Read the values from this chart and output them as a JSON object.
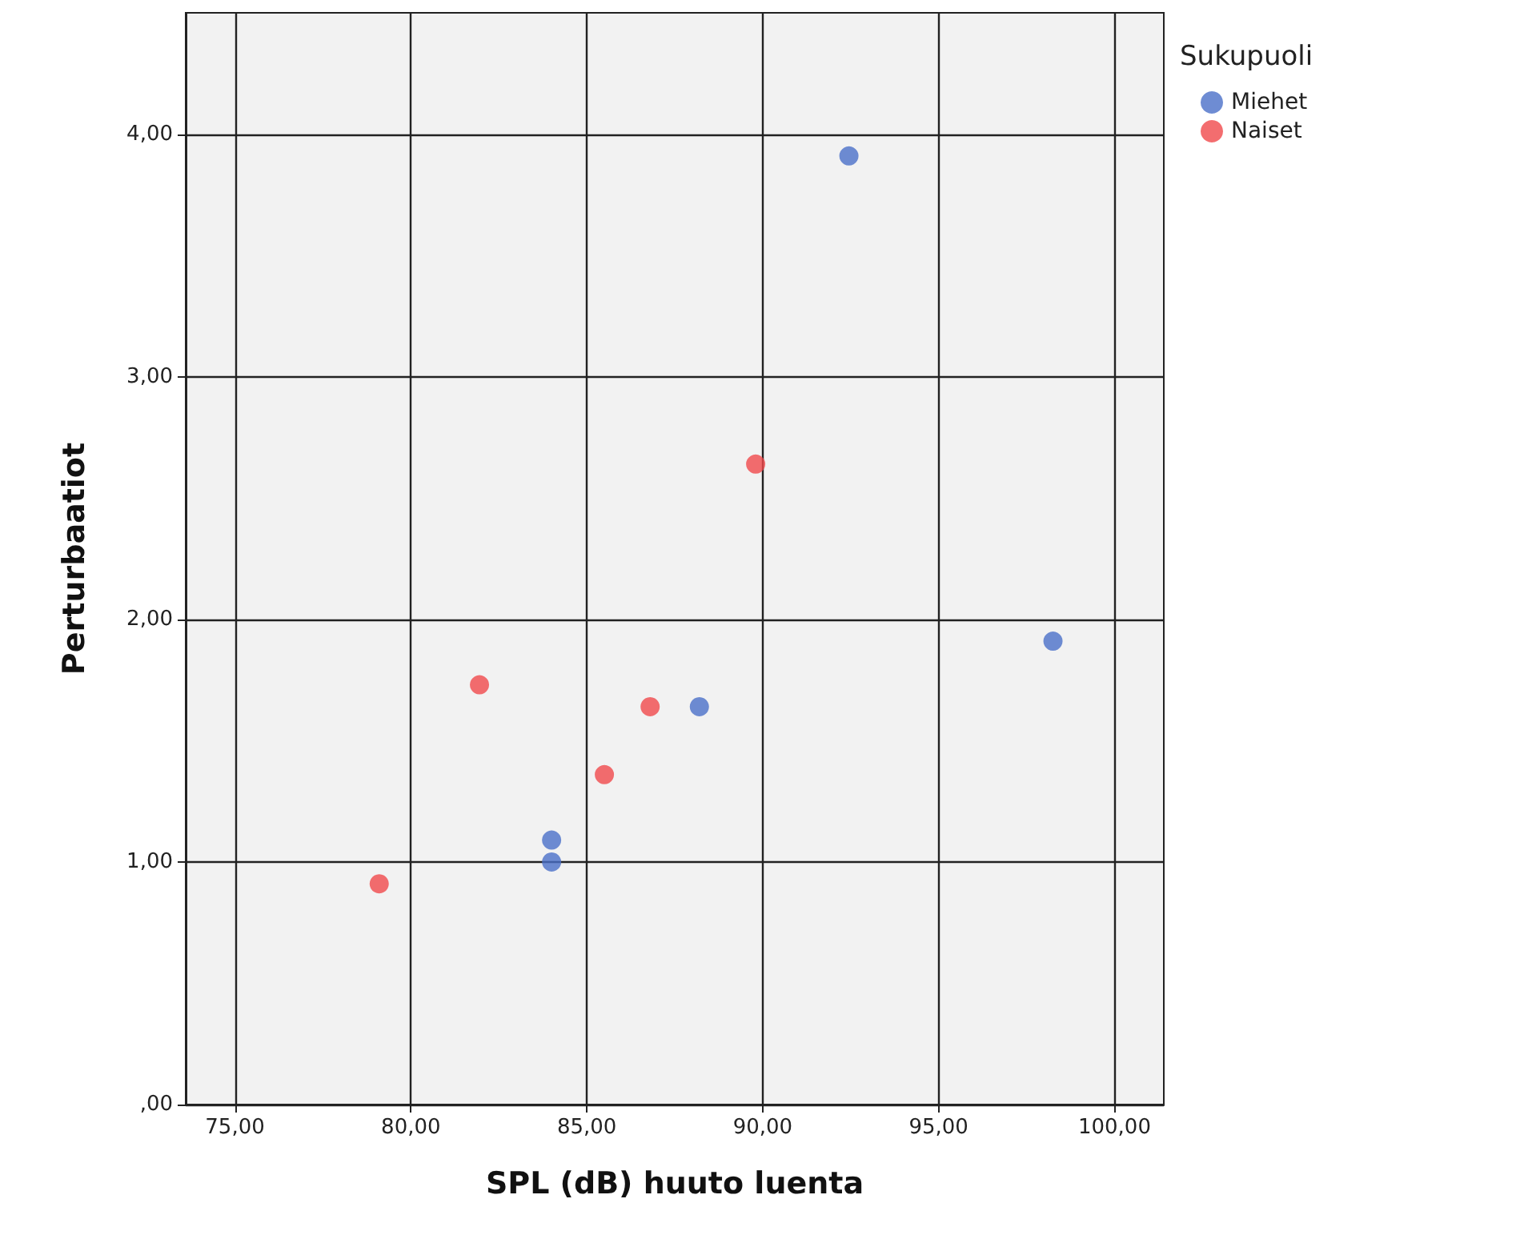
{
  "chart_data": {
    "type": "scatter",
    "xlabel": "SPL (dB) huuto luenta",
    "ylabel": "Perturbaatiot",
    "legend_title": "Sukupuoli",
    "series": [
      {
        "name": "Miehet",
        "color": "#4a6fc8",
        "x": [
          92.45,
          98.25,
          88.2,
          84.0,
          84.0
        ],
        "values": [
          3.91,
          1.91,
          1.64,
          1.09,
          1.0
        ]
      },
      {
        "name": "Naiset",
        "color": "#f0494b",
        "x": [
          79.1,
          81.95,
          85.5,
          86.8,
          89.8
        ],
        "values": [
          0.91,
          1.73,
          1.36,
          1.64,
          2.64
        ]
      }
    ],
    "xlim": [
      73.6,
      101.4
    ],
    "ylim": [
      0,
      4.5
    ],
    "xticks": [
      {
        "value": 75,
        "label": "75,00"
      },
      {
        "value": 80,
        "label": "80,00"
      },
      {
        "value": 85,
        "label": "85,00"
      },
      {
        "value": 90,
        "label": "90,00"
      },
      {
        "value": 95,
        "label": "95,00"
      },
      {
        "value": 100,
        "label": "100,00"
      }
    ],
    "yticks": [
      {
        "value": 0,
        "label": ",00"
      },
      {
        "value": 1,
        "label": "1,00"
      },
      {
        "value": 2,
        "label": "2,00"
      },
      {
        "value": 3,
        "label": "3,00"
      },
      {
        "value": 4,
        "label": "4,00"
      }
    ],
    "grid": true,
    "legend": "top right",
    "marker": "circle"
  }
}
